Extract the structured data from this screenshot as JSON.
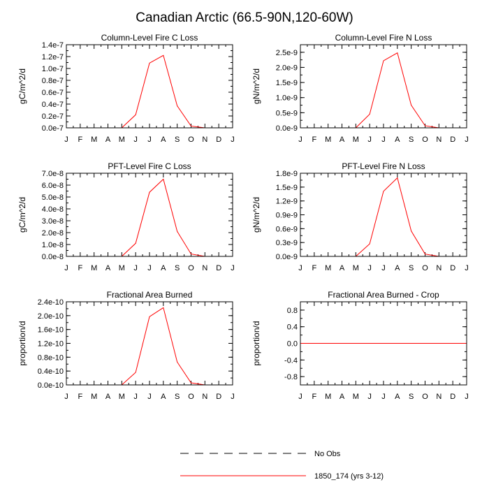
{
  "title": "Canadian Arctic (66.5-90N,120-60W)",
  "legend": {
    "placement": "bottom-center",
    "entries": [
      {
        "label": "No Obs",
        "style": "dashed",
        "color": "#000000"
      },
      {
        "label": "1850_174 (yrs 3-12)",
        "style": "solid",
        "color": "#ff0000"
      }
    ]
  },
  "chart_data": [
    {
      "type": "line",
      "title": "Column-Level Fire C Loss",
      "ylabel": "gC/m^2/d",
      "x": [
        "J",
        "F",
        "M",
        "A",
        "M",
        "J",
        "J",
        "A",
        "S",
        "O",
        "N",
        "D",
        "J"
      ],
      "ylim": [
        0,
        1.4e-07
      ],
      "yticks": [
        0,
        2e-08,
        4e-08,
        6e-08,
        8e-08,
        1e-07,
        1.2e-07,
        1.4e-07
      ],
      "ytick_labels": [
        "0.0e-7",
        "0.2e-7",
        "0.4e-7",
        "0.6e-7",
        "0.8e-7",
        "1.0e-7",
        "1.2e-7",
        "1.4e-7"
      ],
      "series": [
        {
          "name": "1850_174 (yrs 3-12)",
          "color": "#ff0000",
          "values": [
            0,
            0,
            0,
            0,
            0,
            2.2e-08,
            1.09e-07,
            1.22e-07,
            3.7e-08,
            3e-09,
            0,
            0,
            0
          ]
        }
      ]
    },
    {
      "type": "line",
      "title": "Column-Level Fire N Loss",
      "ylabel": "gN/m^2/d",
      "x": [
        "J",
        "F",
        "M",
        "A",
        "M",
        "J",
        "J",
        "A",
        "S",
        "O",
        "N",
        "D",
        "J"
      ],
      "ylim": [
        0,
        2.75e-09
      ],
      "yticks": [
        0,
        5e-10,
        1e-09,
        1.5e-09,
        2e-09,
        2.5e-09
      ],
      "ytick_labels": [
        "0.0e-9",
        "0.5e-9",
        "1.0e-9",
        "1.5e-9",
        "2.0e-9",
        "2.5e-9"
      ],
      "series": [
        {
          "name": "1850_174 (yrs 3-12)",
          "color": "#ff0000",
          "values": [
            0,
            0,
            0,
            0,
            0,
            4.5e-10,
            2.22e-09,
            2.48e-09,
            7.5e-10,
            7e-11,
            0,
            0,
            0
          ]
        }
      ]
    },
    {
      "type": "line",
      "title": "PFT-Level Fire C Loss",
      "ylabel": "gC/m^2/d",
      "x": [
        "J",
        "F",
        "M",
        "A",
        "M",
        "J",
        "J",
        "A",
        "S",
        "O",
        "N",
        "D",
        "J"
      ],
      "ylim": [
        0,
        7e-08
      ],
      "yticks": [
        0,
        1e-08,
        2e-08,
        3e-08,
        4e-08,
        5e-08,
        6e-08,
        7e-08
      ],
      "ytick_labels": [
        "0.0e-8",
        "1.0e-8",
        "2.0e-8",
        "3.0e-8",
        "4.0e-8",
        "5.0e-8",
        "6.0e-8",
        "7.0e-8"
      ],
      "series": [
        {
          "name": "1850_174 (yrs 3-12)",
          "color": "#ff0000",
          "values": [
            0,
            0,
            0,
            0,
            0,
            1.1e-08,
            5.4e-08,
            6.5e-08,
            2.1e-08,
            2e-09,
            0,
            0,
            0
          ]
        }
      ]
    },
    {
      "type": "line",
      "title": "PFT-Level Fire N Loss",
      "ylabel": "gN/m^2/d",
      "x": [
        "J",
        "F",
        "M",
        "A",
        "M",
        "J",
        "J",
        "A",
        "S",
        "O",
        "N",
        "D",
        "J"
      ],
      "ylim": [
        0,
        1.8e-09
      ],
      "yticks": [
        0,
        3e-10,
        6e-10,
        9e-10,
        1.2e-09,
        1.5e-09,
        1.8e-09
      ],
      "ytick_labels": [
        "0.0e-9",
        "0.3e-9",
        "0.6e-9",
        "0.9e-9",
        "1.2e-9",
        "1.5e-9",
        "1.8e-9"
      ],
      "series": [
        {
          "name": "1850_174 (yrs 3-12)",
          "color": "#ff0000",
          "values": [
            0,
            0,
            0,
            0,
            0,
            2.7e-10,
            1.41e-09,
            1.7e-09,
            5.5e-10,
            5e-11,
            0,
            0,
            0
          ]
        }
      ]
    },
    {
      "type": "line",
      "title": "Fractional Area Burned",
      "ylabel": "proportion/d",
      "x": [
        "J",
        "F",
        "M",
        "A",
        "M",
        "J",
        "J",
        "A",
        "S",
        "O",
        "N",
        "D",
        "J"
      ],
      "ylim": [
        0,
        2.4e-10
      ],
      "yticks": [
        0,
        4e-11,
        8e-11,
        1.2e-10,
        1.6e-10,
        2e-10,
        2.4e-10
      ],
      "ytick_labels": [
        "0.0e-10",
        "0.4e-10",
        "0.8e-10",
        "1.2e-10",
        "1.6e-10",
        "2.0e-10",
        "2.4e-10"
      ],
      "series": [
        {
          "name": "1850_174 (yrs 3-12)",
          "color": "#ff0000",
          "values": [
            0,
            0,
            0,
            0,
            0,
            3.6e-11,
            1.97e-10,
            2.23e-10,
            6.6e-11,
            6e-12,
            0,
            0,
            0
          ]
        }
      ]
    },
    {
      "type": "line",
      "title": "Fractional Area Burned - Crop",
      "ylabel": "proportion/d",
      "x": [
        "J",
        "F",
        "M",
        "A",
        "M",
        "J",
        "J",
        "A",
        "S",
        "O",
        "N",
        "D",
        "J"
      ],
      "ylim": [
        -1,
        1
      ],
      "yticks": [
        -0.8,
        -0.4,
        0,
        0.4,
        0.8
      ],
      "ytick_labels": [
        "-0.8",
        "-0.4",
        "0.0",
        "0.4",
        "0.8"
      ],
      "series": [
        {
          "name": "1850_174 (yrs 3-12)",
          "color": "#ff0000",
          "values": [
            0,
            0,
            0,
            0,
            0,
            0,
            0,
            0,
            0,
            0,
            0,
            0,
            0
          ]
        }
      ]
    }
  ]
}
